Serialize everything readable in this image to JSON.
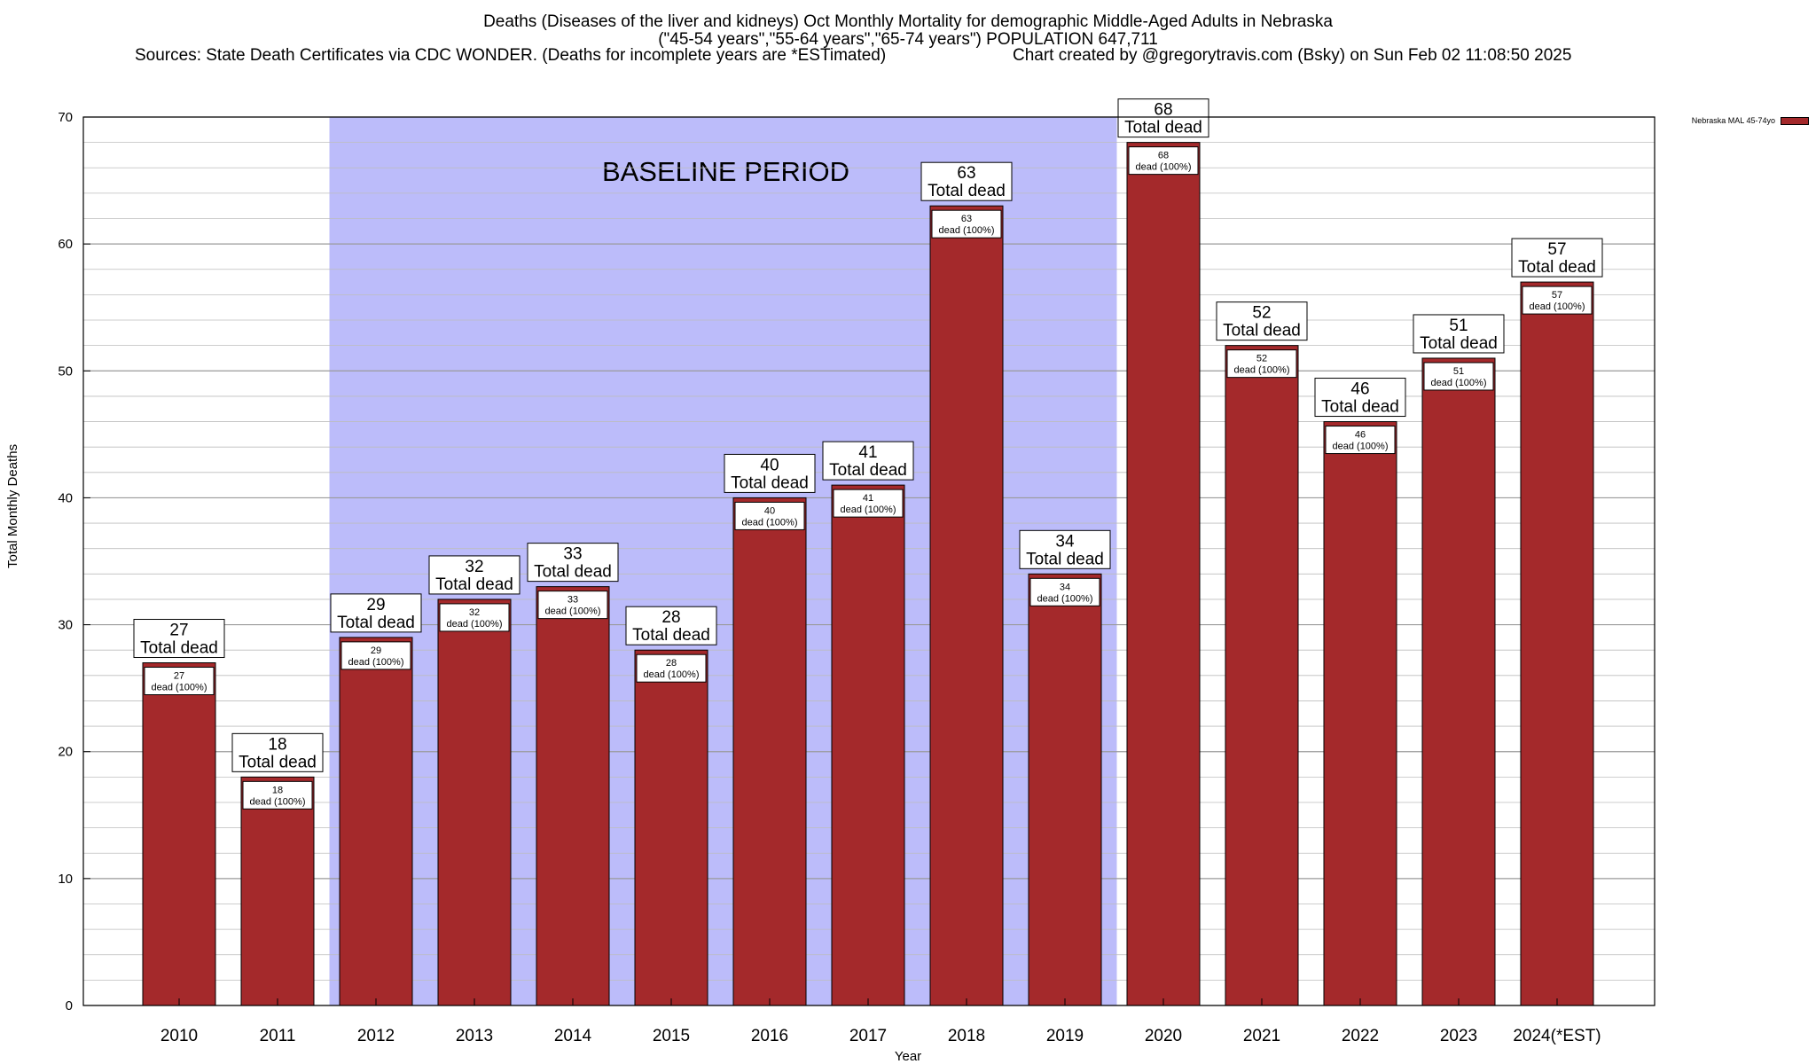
{
  "header": {
    "title_line1": "Deaths (Diseases of the liver and kidneys) Oct Monthly Mortality for demographic Middle-Aged Adults in Nebraska",
    "title_line2": "(\"45-54 years\",\"55-64 years\",\"65-74 years\") POPULATION 647,711",
    "sources": "Sources: State Death Certificates via CDC WONDER. (Deaths for incomplete years are *ESTimated)",
    "credit": "Chart created by @gregorytravis.com (Bsky) on Sun Feb 02 11:08:50 2025"
  },
  "chart_data": {
    "type": "bar",
    "title": "Deaths (Diseases of the liver and kidneys) Oct Monthly Mortality for demographic Middle-Aged Adults in Nebraska",
    "xlabel": "Year",
    "ylabel": "Total Monthly Deaths",
    "ylim": [
      0,
      70
    ],
    "yticks": [
      0,
      10,
      20,
      30,
      40,
      50,
      60,
      70
    ],
    "categories": [
      "2010",
      "2011",
      "2012",
      "2013",
      "2014",
      "2015",
      "2016",
      "2017",
      "2018",
      "2019",
      "2020",
      "2021",
      "2022",
      "2023",
      "2024(*EST)"
    ],
    "series": [
      {
        "name": "Nebraska MAL 45-74yo",
        "values": [
          27,
          18,
          29,
          32,
          33,
          28,
          40,
          41,
          63,
          34,
          68,
          52,
          46,
          51,
          57
        ]
      }
    ],
    "top_label_suffix": "Total dead",
    "inner_label_suffix": "dead (100%)",
    "baseline_label": "BASELINE PERIOD",
    "baseline_range": [
      "2012",
      "2019"
    ],
    "legend_label": "Nebraska MAL 45-74yo",
    "bar_color": "#a4292b",
    "baseline_color": "#bcbcfa"
  }
}
